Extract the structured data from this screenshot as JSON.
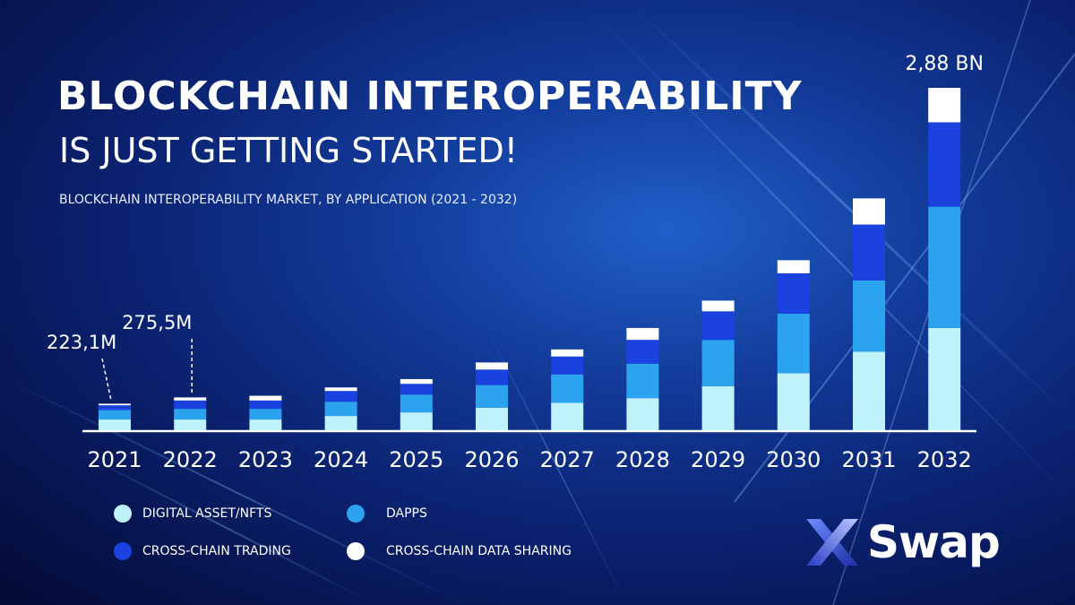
{
  "header": {
    "title_line1": "BLOCKCHAIN INTEROPERABILITY",
    "title_line2": "IS JUST GETTING STARTED!",
    "subtitle": "BLOCKCHAIN INTEROPERABILITY MARKET, BY APPLICATION (2021 - 2032)"
  },
  "legend": [
    {
      "label": "DIGITAL ASSET/NFTS",
      "color": "#bff3fb"
    },
    {
      "label": "DAPPS",
      "color": "#2ba3ee"
    },
    {
      "label": "CROSS-CHAIN TRADING",
      "color": "#1a42e0"
    },
    {
      "label": "CROSS-CHAIN DATA SHARING",
      "color": "#ffffff"
    }
  ],
  "logo": {
    "text": "Swap"
  },
  "chart_data": {
    "type": "bar",
    "stacked": true,
    "categories": [
      "2021",
      "2022",
      "2023",
      "2024",
      "2025",
      "2026",
      "2027",
      "2028",
      "2029",
      "2030",
      "2031",
      "2032"
    ],
    "series": [
      {
        "name": "DIGITAL ASSET/NFTS",
        "color": "#bff3fb",
        "values": [
          0.09,
          0.09,
          0.09,
          0.12,
          0.15,
          0.19,
          0.23,
          0.27,
          0.37,
          0.48,
          0.66,
          0.86
        ]
      },
      {
        "name": "DAPPS",
        "color": "#2ba3ee",
        "values": [
          0.08,
          0.09,
          0.09,
          0.12,
          0.15,
          0.19,
          0.24,
          0.29,
          0.39,
          0.5,
          0.6,
          1.02
        ]
      },
      {
        "name": "CROSS-CHAIN TRADING",
        "color": "#1a42e0",
        "values": [
          0.04,
          0.07,
          0.07,
          0.09,
          0.09,
          0.13,
          0.15,
          0.2,
          0.24,
          0.34,
          0.47,
          0.71
        ]
      },
      {
        "name": "CROSS-CHAIN DATA SHARING",
        "color": "#ffffff",
        "values": [
          0.013,
          0.026,
          0.04,
          0.03,
          0.04,
          0.06,
          0.06,
          0.1,
          0.09,
          0.11,
          0.22,
          0.29
        ]
      }
    ],
    "annotations": [
      {
        "category": "2021",
        "text": "223,1M"
      },
      {
        "category": "2022",
        "text": "275,5M"
      },
      {
        "category": "2032",
        "text": "2,88 BN"
      }
    ],
    "ylim": [
      0,
      2.88
    ]
  }
}
